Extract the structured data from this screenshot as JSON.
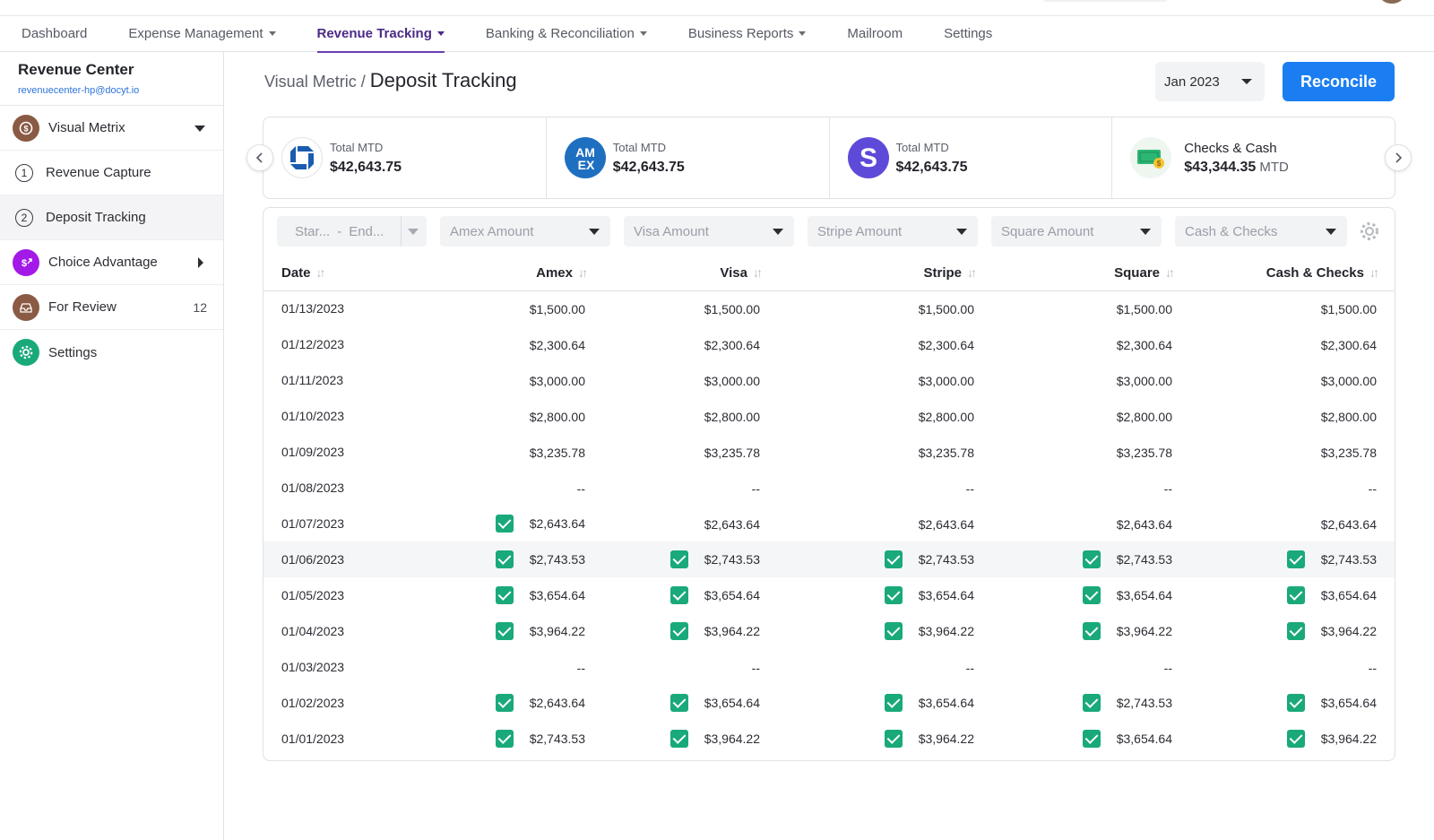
{
  "top_nav": {
    "items": [
      {
        "label": "Dashboard",
        "dropdown": false,
        "active": false
      },
      {
        "label": "Expense Management",
        "dropdown": true,
        "active": false
      },
      {
        "label": "Revenue Tracking",
        "dropdown": true,
        "active": true
      },
      {
        "label": "Banking & Reconciliation",
        "dropdown": true,
        "active": false
      },
      {
        "label": "Business Reports",
        "dropdown": true,
        "active": false
      },
      {
        "label": "Mailroom",
        "dropdown": false,
        "active": false
      },
      {
        "label": "Settings",
        "dropdown": false,
        "active": false
      }
    ]
  },
  "sidebar": {
    "title": "Revenue Center",
    "email": "revenuecenter-hp@docyt.io",
    "items": [
      {
        "label": "Visual Metrix",
        "icon": "visual-metrix-icon",
        "icon_color": "#8a5a44",
        "expand": "down"
      },
      {
        "label": "Revenue Capture",
        "step": "1"
      },
      {
        "label": "Deposit Tracking",
        "step": "2",
        "active": true
      },
      {
        "label": "Choice Advantage",
        "icon": "choice-advantage-icon",
        "icon_color": "#a319e8",
        "expand": "right"
      },
      {
        "label": "For Review",
        "icon": "inbox-icon",
        "icon_color": "#8a5a44",
        "count": "12"
      },
      {
        "label": "Settings",
        "icon": "gear-icon",
        "icon_color": "#19a97a"
      }
    ]
  },
  "header": {
    "breadcrumb_parent": "Visual Metric",
    "breadcrumb_sep": "/",
    "page_title": "Deposit Tracking",
    "month": "Jan 2023",
    "reconcile_label": "Reconcile"
  },
  "cards": [
    {
      "icon": "chase-logo-icon",
      "label": "Total MTD",
      "value": "$42,643.75"
    },
    {
      "icon": "amex-logo-icon",
      "label": "Total MTD",
      "value": "$42,643.75"
    },
    {
      "icon": "stripe-logo-icon",
      "label": "Total MTD",
      "value": "$42,643.75"
    },
    {
      "icon": "cash-icon",
      "label": "Checks & Cash",
      "value": "$43,344.35",
      "suffix": "MTD"
    }
  ],
  "filters": {
    "start_placeholder": "Star...",
    "dash": "-",
    "end_placeholder": "End...",
    "amex": "Amex Amount",
    "visa": "Visa Amount",
    "stripe": "Stripe Amount",
    "square": "Square Amount",
    "cash": "Cash & Checks"
  },
  "table": {
    "columns": [
      "Date",
      "Amex",
      "Visa",
      "Stripe",
      "Square",
      "Cash & Checks"
    ],
    "rows": [
      {
        "date": "01/13/2023",
        "cells": [
          {
            "v": "$1,500.00",
            "c": false
          },
          {
            "v": "$1,500.00",
            "c": false
          },
          {
            "v": "$1,500.00",
            "c": false
          },
          {
            "v": "$1,500.00",
            "c": false
          },
          {
            "v": "$1,500.00",
            "c": false
          }
        ]
      },
      {
        "date": "01/12/2023",
        "cells": [
          {
            "v": "$2,300.64",
            "c": false
          },
          {
            "v": "$2,300.64",
            "c": false
          },
          {
            "v": "$2,300.64",
            "c": false
          },
          {
            "v": "$2,300.64",
            "c": false
          },
          {
            "v": "$2,300.64",
            "c": false
          }
        ]
      },
      {
        "date": "01/11/2023",
        "cells": [
          {
            "v": "$3,000.00",
            "c": false
          },
          {
            "v": "$3,000.00",
            "c": false
          },
          {
            "v": "$3,000.00",
            "c": false
          },
          {
            "v": "$3,000.00",
            "c": false
          },
          {
            "v": "$3,000.00",
            "c": false
          }
        ]
      },
      {
        "date": "01/10/2023",
        "cells": [
          {
            "v": "$2,800.00",
            "c": false
          },
          {
            "v": "$2,800.00",
            "c": false
          },
          {
            "v": "$2,800.00",
            "c": false
          },
          {
            "v": "$2,800.00",
            "c": false
          },
          {
            "v": "$2,800.00",
            "c": false
          }
        ]
      },
      {
        "date": "01/09/2023",
        "cells": [
          {
            "v": "$3,235.78",
            "c": false
          },
          {
            "v": "$3,235.78",
            "c": false
          },
          {
            "v": "$3,235.78",
            "c": false
          },
          {
            "v": "$3,235.78",
            "c": false
          },
          {
            "v": "$3,235.78",
            "c": false
          }
        ]
      },
      {
        "date": "01/08/2023",
        "cells": [
          {
            "v": "--",
            "c": false
          },
          {
            "v": "--",
            "c": false
          },
          {
            "v": "--",
            "c": false
          },
          {
            "v": "--",
            "c": false
          },
          {
            "v": "--",
            "c": false
          }
        ]
      },
      {
        "date": "01/07/2023",
        "cells": [
          {
            "v": "$2,643.64",
            "c": true
          },
          {
            "v": "$2,643.64",
            "c": false
          },
          {
            "v": "$2,643.64",
            "c": false
          },
          {
            "v": "$2,643.64",
            "c": false
          },
          {
            "v": "$2,643.64",
            "c": false
          }
        ]
      },
      {
        "date": "01/06/2023",
        "highlight": true,
        "cells": [
          {
            "v": "$2,743.53",
            "c": true
          },
          {
            "v": "$2,743.53",
            "c": true
          },
          {
            "v": "$2,743.53",
            "c": true
          },
          {
            "v": "$2,743.53",
            "c": true
          },
          {
            "v": "$2,743.53",
            "c": true
          }
        ]
      },
      {
        "date": "01/05/2023",
        "cells": [
          {
            "v": "$3,654.64",
            "c": true
          },
          {
            "v": "$3,654.64",
            "c": true
          },
          {
            "v": "$3,654.64",
            "c": true
          },
          {
            "v": "$3,654.64",
            "c": true
          },
          {
            "v": "$3,654.64",
            "c": true
          }
        ]
      },
      {
        "date": "01/04/2023",
        "cells": [
          {
            "v": "$3,964.22",
            "c": true
          },
          {
            "v": "$3,964.22",
            "c": true
          },
          {
            "v": "$3,964.22",
            "c": true
          },
          {
            "v": "$3,964.22",
            "c": true
          },
          {
            "v": "$3,964.22",
            "c": true
          }
        ]
      },
      {
        "date": "01/03/2023",
        "cells": [
          {
            "v": "--",
            "c": false
          },
          {
            "v": "--",
            "c": false
          },
          {
            "v": "--",
            "c": false
          },
          {
            "v": "--",
            "c": false
          },
          {
            "v": "--",
            "c": false
          }
        ]
      },
      {
        "date": "01/02/2023",
        "cells": [
          {
            "v": "$2,643.64",
            "c": true
          },
          {
            "v": "$3,654.64",
            "c": true
          },
          {
            "v": "$3,654.64",
            "c": true
          },
          {
            "v": "$2,743.53",
            "c": true
          },
          {
            "v": "$3,654.64",
            "c": true
          }
        ]
      },
      {
        "date": "01/01/2023",
        "cells": [
          {
            "v": "$2,743.53",
            "c": true
          },
          {
            "v": "$3,964.22",
            "c": true
          },
          {
            "v": "$3,964.22",
            "c": true
          },
          {
            "v": "$3,654.64",
            "c": true
          },
          {
            "v": "$3,964.22",
            "c": true
          }
        ]
      }
    ]
  },
  "colors": {
    "accent_purple": "#4b2a86",
    "primary_blue": "#1a7ef2",
    "check_green": "#19a97a"
  }
}
